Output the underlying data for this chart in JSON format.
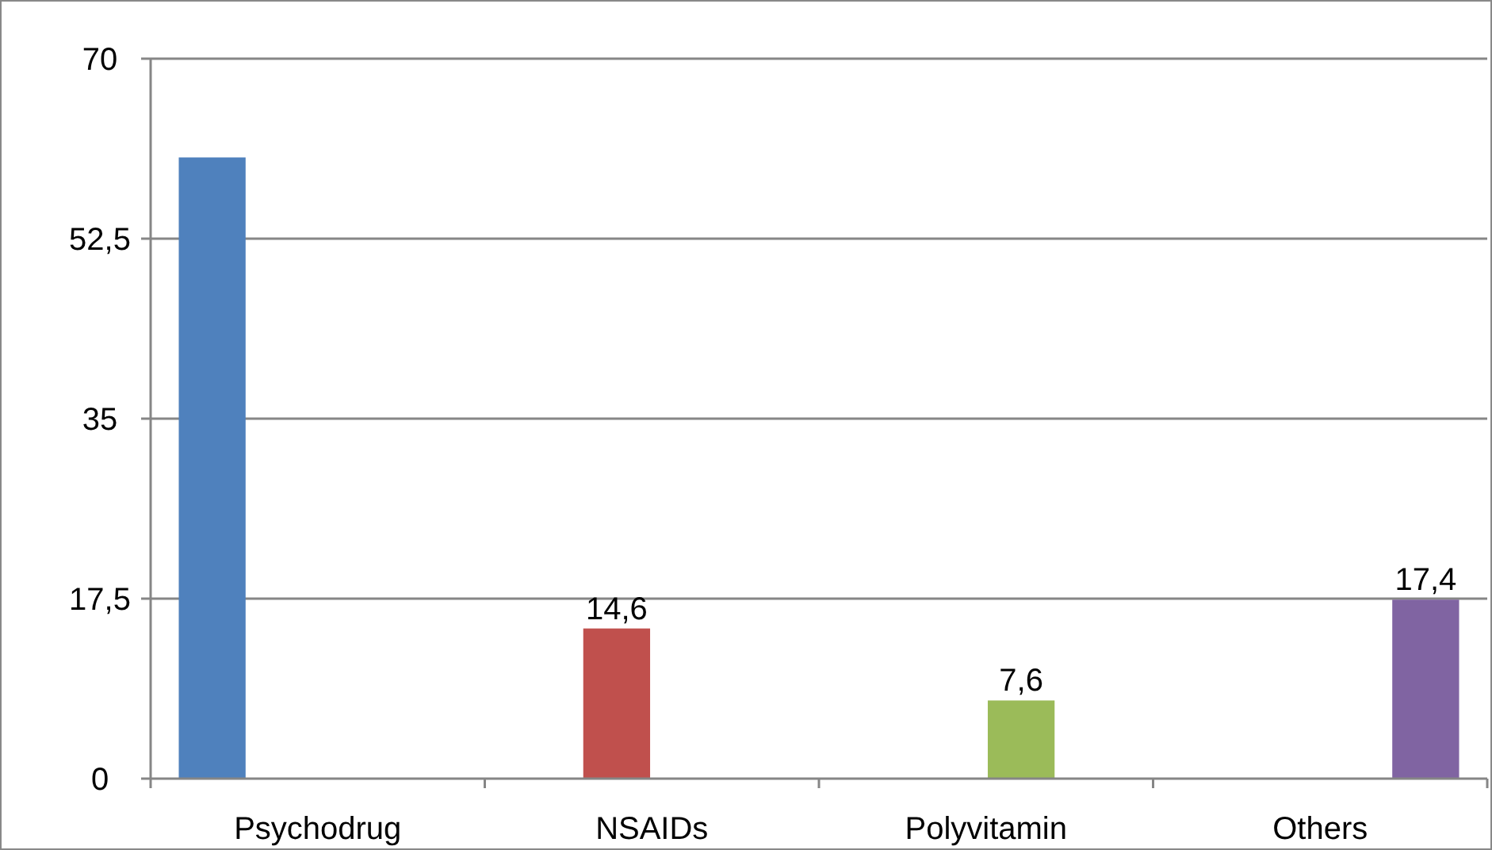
{
  "chart_data": {
    "type": "bar",
    "categories": [
      "Psychodrug",
      "NSAIDs",
      "Polyvitamin",
      "Others"
    ],
    "series": [
      {
        "color": "#4f81bd",
        "values": [
          60.4,
          null,
          null,
          null
        ],
        "value_labels": [
          null,
          null,
          null,
          null
        ]
      },
      {
        "color": "#c0504d",
        "values": [
          null,
          14.6,
          null,
          null
        ],
        "value_labels": [
          null,
          "14,6",
          null,
          null
        ]
      },
      {
        "color": "#9bbb59",
        "values": [
          null,
          null,
          7.6,
          null
        ],
        "value_labels": [
          null,
          null,
          "7,6",
          null
        ]
      },
      {
        "color": "#8064a2",
        "values": [
          null,
          null,
          null,
          17.4
        ],
        "value_labels": [
          null,
          null,
          null,
          "17,4"
        ]
      }
    ],
    "ylim": [
      0,
      70
    ],
    "yticks": [
      0,
      {
        "value": 17.5,
        "label": "17,5"
      },
      35,
      {
        "value": 52.5,
        "label": "52,5"
      },
      70
    ],
    "grid": "y"
  }
}
